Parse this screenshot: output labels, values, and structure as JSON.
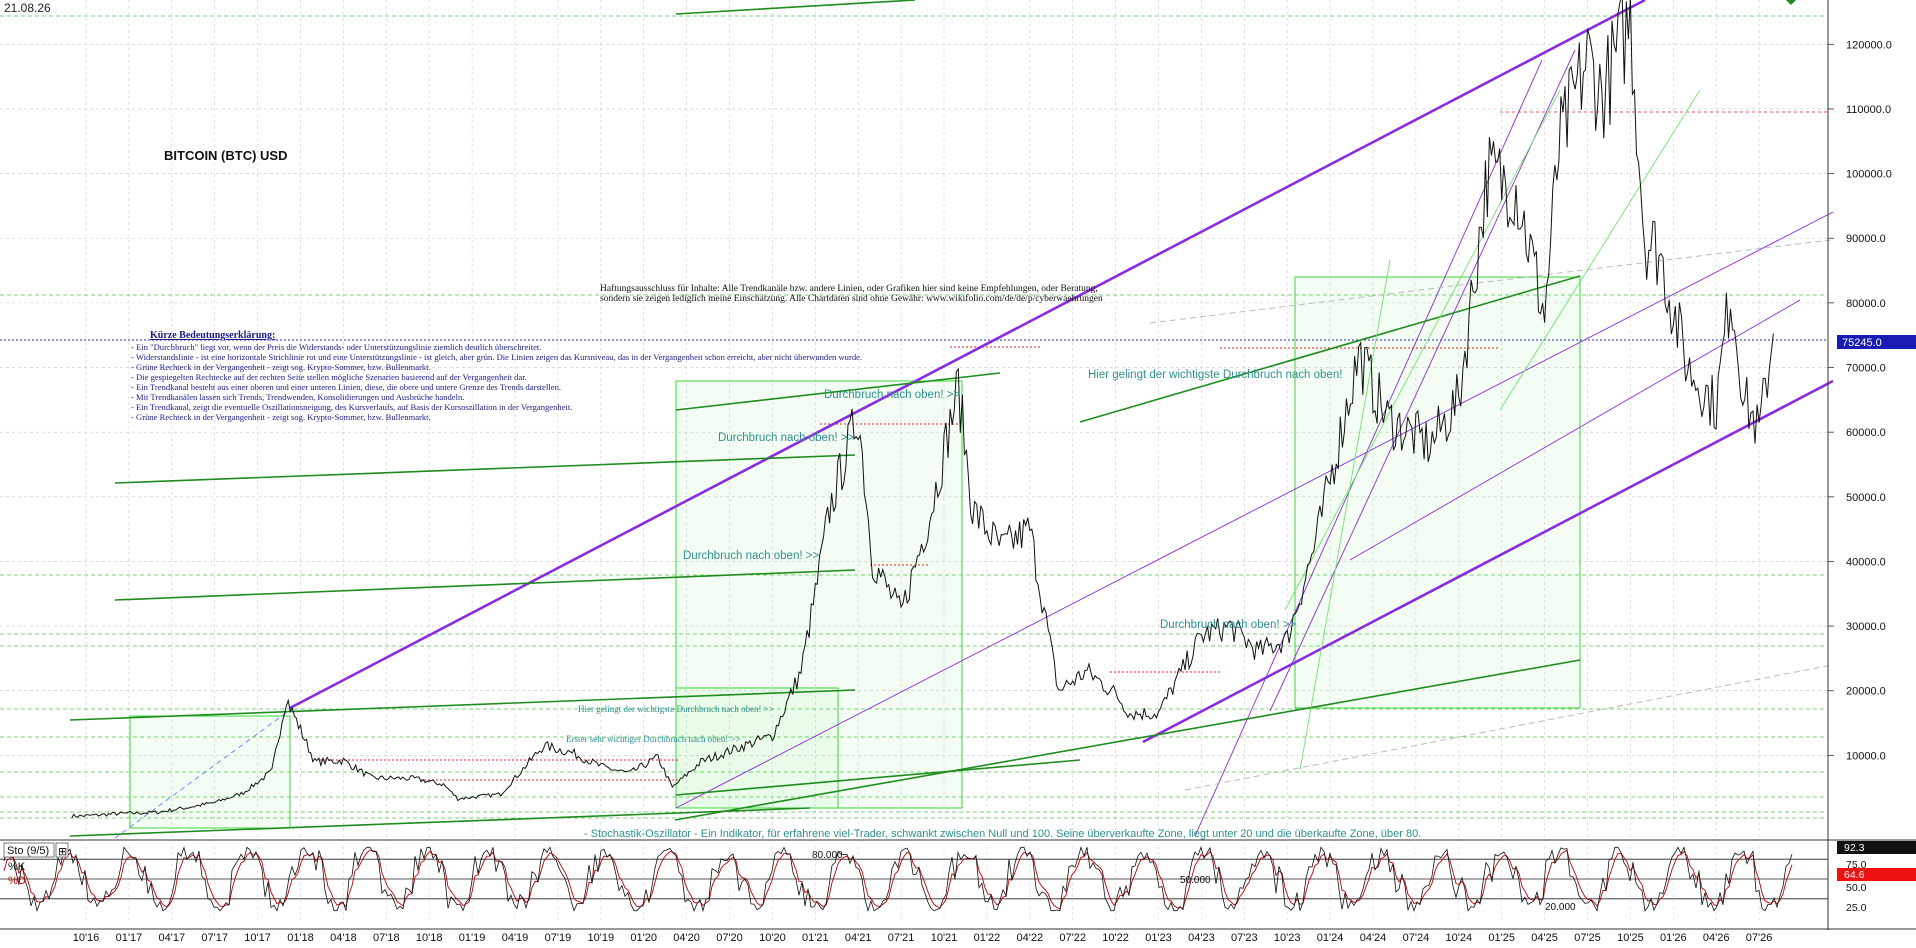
{
  "date_label": "21.08.26",
  "title": "BITCOIN (BTC) USD",
  "disclaimer": [
    "Haftungsausschluss für Inhalte: Alle Trendkanäle bzw. andere Linien, oder Grafiken hier sind keine Empfehlungen, oder Beratung,",
    "sondern sie zeigen lediglich meine  Einschätzung. Alle Chartdaten sind ohne Gewähr:  www.wikifolio.com/de/de/p/cyberwaehrungen"
  ],
  "legend_heading": "Kürze Bedeutungserklärung:",
  "legend_lines": [
    "- Ein \"Durchbruch\" liegt vor, wenn der Preis die Widerstands- oder Unterstützungslinie ziemlich deutlich überschreitet.",
    "- Widerstandslinie - ist eine horizontale Strichlinie rot und eine Unterstützungslinie - ist gleich, aber grün. Die Linien zeigen das Kursniveau, das in der Vergangenheit schon erreicht, aber nicht überwunden wurde.",
    "- Grüne Rechteck in der Vergangenheit - zeigt sog. Krypto-Sommer, bzw. Bullenmarkt.",
    "- Die gespiegelten Rechtecke auf der rechten Seite stellen mögliche Szenarien basierend auf der Vergangenheit dar.",
    "- Ein Trendkanal besteht aus einer oberen und einer unteren Linien, diese, die obere und untere Grenze des Trends darstellen.",
    "- Mit Trendkanälen lassen sich Trends, Trendwenden, Konsolidierungen und Ausbrüche handeln.",
    "  - Ein Trendkanal, zeigt die eventuelle Oszillationsneigung, des Kursverlaufs, auf Basis der Kursoszillation in der Vergangenheit.",
    "- Grüne Rechteck in der Vergangenheit - zeigt sog. Krypto-Sommer, bzw. Bullenmarkt."
  ],
  "annotations": {
    "breakout_main_right": "Hier gelingt der wichtigste Durchbruch nach oben!",
    "breakout_2021_top": "Durchbruch nach oben! >>",
    "breakout_2021_mid": "Durchbruch nach oben! >>",
    "breakout_2020": "Durchbruch nach oben! >>",
    "breakout_2023": "Durchbruch nach oben! >>",
    "breakout_main_left": "Hier gelingt der wichtigste Durchbruch nach oben! >>",
    "first_breakout": "Erster sehr wichtiger Durchbruch nach oben! >>",
    "stochastic_note": "- Stochastik-Oszillator - Ein Indikator, für erfahrene viel-Trader, schwankt zwischen Null und 100. Seine überverkaufte Zone, liegt unter 20 und die überkaufte Zone, über 80."
  },
  "indicator": {
    "name": "Sto (9/5)",
    "k_label": "%K",
    "d_label": "%D",
    "k_value": "92.3",
    "d_value": "64.6",
    "level_80": "80.000",
    "level_50": "50.000",
    "level_20": "20.000",
    "yticks": [
      "75.0",
      "50.0",
      "25.0"
    ]
  },
  "colors": {
    "price_line": "#111111",
    "channel_purple": "#8a2be2",
    "trend_green": "#1e8c1e",
    "box_green": "#39d839",
    "resistance_red": "#e02020",
    "current_price_bg": "#1a1ab4",
    "annotation_teal": "#2f8f8f",
    "stoch_k": "#111111",
    "stoch_d": "#c00000"
  },
  "chart_data": {
    "type": "line",
    "series_name": "BITCOIN (BTC) USD",
    "x_tick_labels": [
      "10'16",
      "01'17",
      "04'17",
      "07'17",
      "10'17",
      "01'18",
      "04'18",
      "07'18",
      "10'18",
      "01'19",
      "04'19",
      "07'19",
      "10'19",
      "01'20",
      "04'20",
      "07'20",
      "10'20",
      "01'21",
      "04'21",
      "07'21",
      "10'21",
      "01'22",
      "04'22",
      "07'22",
      "10'22",
      "01'23",
      "04'23",
      "07'23",
      "10'23",
      "01'24",
      "04'24",
      "07'24",
      "10'24",
      "01'25",
      "04'25",
      "07'25",
      "10'25",
      "01'26",
      "04'26",
      "07'26"
    ],
    "y_tick_labels": [
      "10000.0",
      "20000.0",
      "30000.0",
      "40000.0",
      "50000.0",
      "60000.0",
      "70000.0",
      "80000.0",
      "90000.0",
      "100000.0",
      "110000.0",
      "120000.0"
    ],
    "ylim": [
      0,
      125000
    ],
    "current_price": "75245.0",
    "x": [
      "2016-09",
      "2016-10",
      "2016-12",
      "2017-03",
      "2017-05",
      "2017-07",
      "2017-09",
      "2017-11",
      "2017-12",
      "2018-02",
      "2018-04",
      "2018-06",
      "2018-09",
      "2018-11",
      "2018-12",
      "2019-03",
      "2019-06",
      "2019-08",
      "2019-10",
      "2019-12",
      "2020-02",
      "2020-03",
      "2020-05",
      "2020-08",
      "2020-10",
      "2020-12",
      "2021-01",
      "2021-02",
      "2021-04",
      "2021-05",
      "2021-07",
      "2021-09",
      "2021-11",
      "2021-12",
      "2022-02",
      "2022-04",
      "2022-06",
      "2022-08",
      "2022-10",
      "2022-11",
      "2023-01",
      "2023-04",
      "2023-06",
      "2023-08",
      "2023-10",
      "2023-12",
      "2024-03",
      "2024-05",
      "2024-08",
      "2024-10",
      "2024-12",
      "2025-02",
      "2025-04",
      "2025-05",
      "2025-07",
      "2025-08",
      "2025-10",
      "2025-11",
      "2025-12",
      "2026-02",
      "2026-04",
      "2026-05",
      "2026-06",
      "2026-07",
      "2026-08"
    ],
    "values": [
      600,
      650,
      950,
      1200,
      1900,
      2700,
      4200,
      7500,
      18900,
      9000,
      9200,
      6500,
      6400,
      5500,
      3300,
      4000,
      11500,
      10400,
      8300,
      7200,
      9700,
      5000,
      9000,
      11500,
      13000,
      23000,
      35000,
      48000,
      63000,
      40000,
      32000,
      47000,
      67000,
      48000,
      42000,
      45000,
      20000,
      23000,
      19500,
      16500,
      16500,
      28500,
      30000,
      26000,
      28000,
      43000,
      72000,
      62000,
      58000,
      65000,
      100000,
      98000,
      78000,
      104000,
      118000,
      112000,
      124000,
      90000,
      88000,
      70000,
      64000,
      82000,
      65000,
      60000,
      75245
    ]
  }
}
